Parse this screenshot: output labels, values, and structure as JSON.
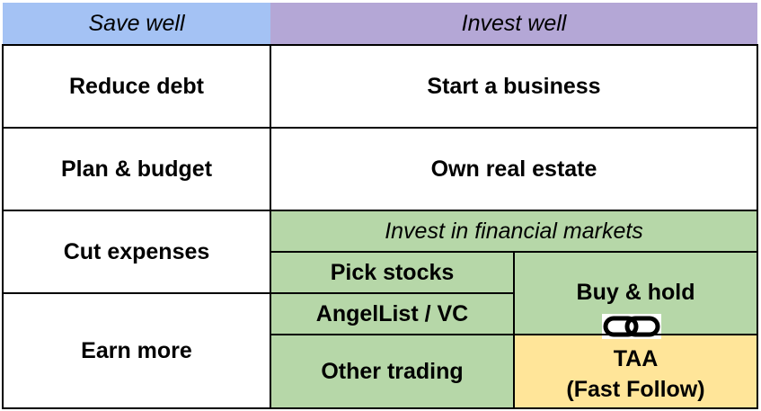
{
  "columns": {
    "save_header": "Save well",
    "invest_header": "Invest well",
    "save_color": "#a4c2f4",
    "invest_color": "#b4a7d6"
  },
  "save_items": [
    "Reduce debt",
    "Plan & budget",
    "Cut expenses",
    "Earn more"
  ],
  "invest_items": [
    "Start a business",
    "Own real estate"
  ],
  "markets": {
    "header": "Invest in financial markets",
    "color": "#b6d7a8",
    "pick_stocks": "Pick stocks",
    "angellist": "AngelList / VC",
    "other_trading": "Other trading",
    "buy_hold": "Buy & hold",
    "taa_line1": "TAA",
    "taa_line2": "(Fast Follow)",
    "taa_color": "#ffe599",
    "link_icon": "chain-link-icon"
  }
}
